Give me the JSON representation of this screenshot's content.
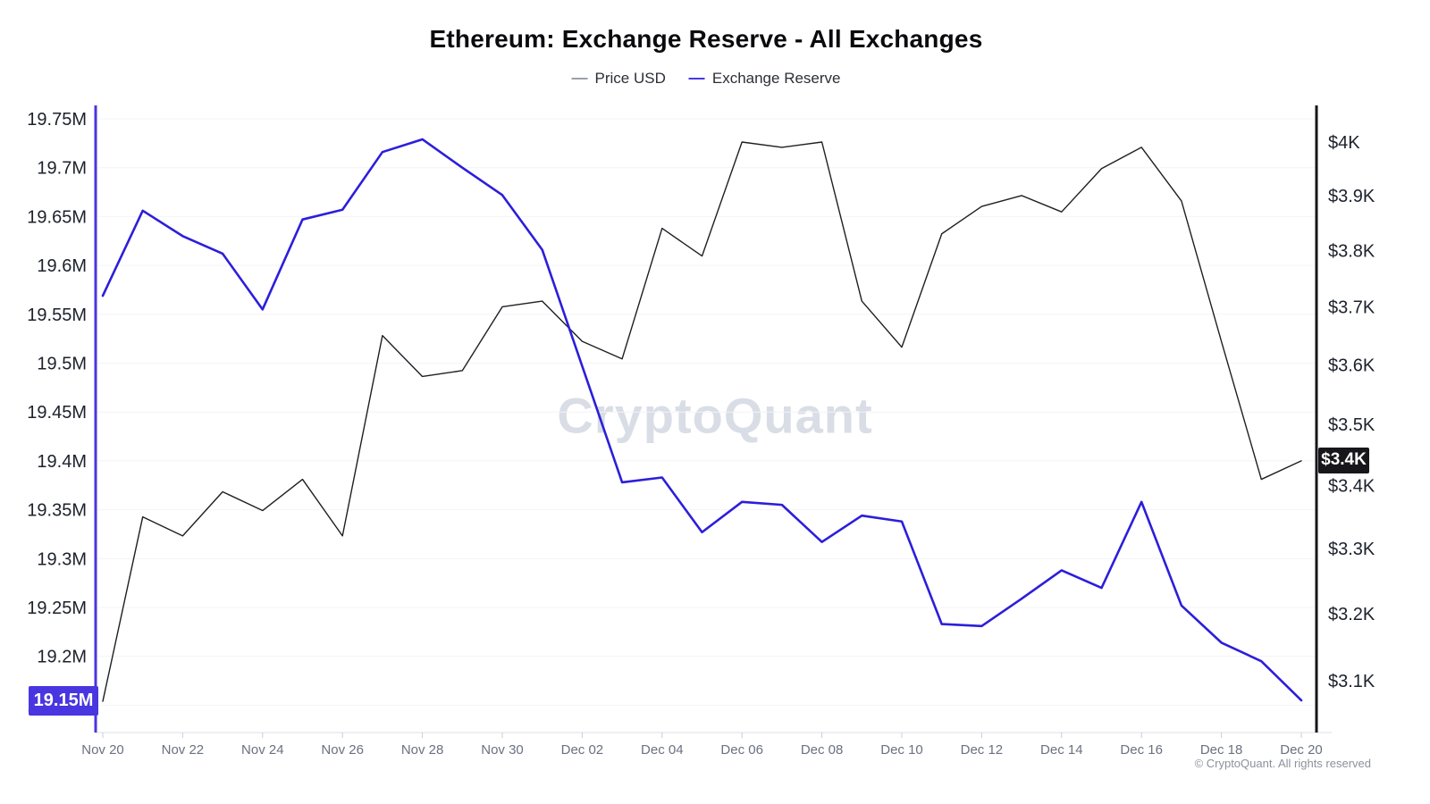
{
  "title": "Ethereum: Exchange Reserve - All Exchanges",
  "legend": [
    {
      "label": "Price USD",
      "color": "#9aa0a9"
    },
    {
      "label": "Exchange Reserve",
      "color": "#4936e0"
    }
  ],
  "watermark": "CryptoQuant",
  "copyright": "© CryptoQuant. All rights reserved",
  "badges": {
    "left": {
      "text": "19.15M",
      "color": "#4936e0"
    },
    "right": {
      "text": "$3.4K",
      "color": "#17171b"
    }
  },
  "chart_data": {
    "type": "line",
    "x": [
      "Nov 20",
      "Nov 21",
      "Nov 22",
      "Nov 23",
      "Nov 24",
      "Nov 25",
      "Nov 26",
      "Nov 27",
      "Nov 28",
      "Nov 29",
      "Nov 30",
      "Dec 01",
      "Dec 02",
      "Dec 03",
      "Dec 04",
      "Dec 05",
      "Dec 06",
      "Dec 07",
      "Dec 08",
      "Dec 09",
      "Dec 10",
      "Dec 11",
      "Dec 12",
      "Dec 13",
      "Dec 14",
      "Dec 15",
      "Dec 16",
      "Dec 17",
      "Dec 18",
      "Dec 19",
      "Dec 20"
    ],
    "x_tick_labels": [
      "Nov 20",
      "Nov 22",
      "Nov 24",
      "Nov 26",
      "Nov 28",
      "Nov 30",
      "Dec 02",
      "Dec 04",
      "Dec 06",
      "Dec 08",
      "Dec 10",
      "Dec 12",
      "Dec 14",
      "Dec 16",
      "Dec 18",
      "Dec 20"
    ],
    "series": [
      {
        "name": "Price USD",
        "axis": "right",
        "color": "#1e1f24",
        "unit": "K USD",
        "values": [
          3.07,
          3.35,
          3.32,
          3.39,
          3.36,
          3.41,
          3.32,
          3.65,
          3.58,
          3.59,
          3.7,
          3.71,
          3.64,
          3.61,
          3.84,
          3.79,
          4.0,
          3.99,
          4.0,
          3.71,
          3.63,
          3.83,
          3.88,
          3.9,
          3.87,
          3.95,
          3.99,
          3.89,
          3.64,
          3.41,
          3.44
        ]
      },
      {
        "name": "Exchange Reserve",
        "axis": "left",
        "color": "#2c1edb",
        "unit": "M ETH",
        "values": [
          19.569,
          19.656,
          19.63,
          19.612,
          19.555,
          19.647,
          19.657,
          19.716,
          19.729,
          19.7,
          19.672,
          19.616,
          19.497,
          19.378,
          19.383,
          19.327,
          19.358,
          19.355,
          19.317,
          19.344,
          19.338,
          19.233,
          19.231,
          19.259,
          19.288,
          19.27,
          19.358,
          19.252,
          19.214,
          19.195,
          19.155
        ]
      }
    ],
    "left_axis": {
      "ticks": [
        "19.75M",
        "19.7M",
        "19.65M",
        "19.6M",
        "19.55M",
        "19.5M",
        "19.45M",
        "19.4M",
        "19.35M",
        "19.3M",
        "19.25M",
        "19.2M",
        "19.15M"
      ],
      "tick_values": [
        19.75,
        19.7,
        19.65,
        19.6,
        19.55,
        19.5,
        19.45,
        19.4,
        19.35,
        19.3,
        19.25,
        19.2,
        19.15
      ],
      "scale": "linear"
    },
    "right_axis": {
      "ticks": [
        "$4K",
        "$3.9K",
        "$3.8K",
        "$3.7K",
        "$3.6K",
        "$3.5K",
        "$3.4K",
        "$3.3K",
        "$3.2K",
        "$3.1K"
      ],
      "tick_values": [
        4.0,
        3.9,
        3.8,
        3.7,
        3.6,
        3.5,
        3.4,
        3.3,
        3.2,
        3.1
      ],
      "scale": "log"
    },
    "grid": "horizontal-only",
    "legend_position": "top"
  }
}
